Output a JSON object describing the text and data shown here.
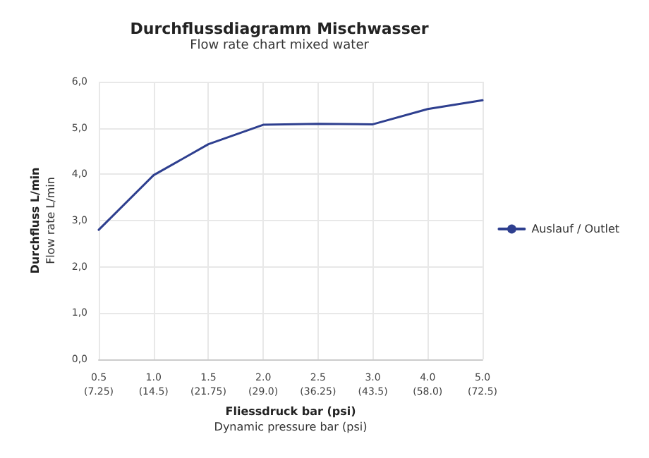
{
  "chart_data": {
    "type": "line",
    "title": "Durchflussdiagramm Mischwasser",
    "subtitle": "Flow rate chart mixed water",
    "xlabel": "Fliessdruck bar (psi)\nDynamic pressure bar (psi)",
    "ylabel": "Durchfluss L/min\nFlow rate L/min",
    "categories": [
      "0.5\n(7.25)",
      "1.0\n(14.5)",
      "1.5\n(21.75)",
      "2.0\n(29.0)",
      "2.5\n(36.25)",
      "3.0\n(43.5)",
      "4.0\n(58.0)",
      "5.0\n(72.5)"
    ],
    "series": [
      {
        "name": "Auslauf / Outlet",
        "color": "#2e3f8f",
        "values": [
          2.8,
          3.98,
          4.65,
          5.07,
          5.09,
          5.08,
          5.41,
          5.6
        ]
      }
    ],
    "ylim": [
      0,
      6
    ],
    "yticks": [
      {
        "value": 0,
        "label": "0,0"
      },
      {
        "value": 1,
        "label": "1,0"
      },
      {
        "value": 2,
        "label": "2,0"
      },
      {
        "value": 3,
        "label": "3,0"
      },
      {
        "value": 4,
        "label": "4,0"
      },
      {
        "value": 5,
        "label": "5,0"
      },
      {
        "value": 6,
        "label": "6,0"
      }
    ],
    "grid": true,
    "legend": "right",
    "marker": "none",
    "line_style": "solid"
  }
}
